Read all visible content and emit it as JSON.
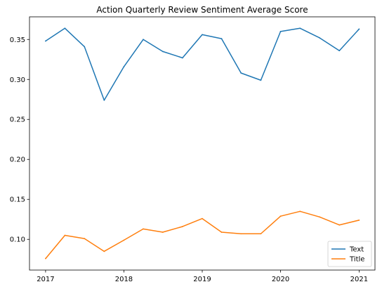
{
  "chart_data": {
    "type": "line",
    "title": "Action Quarterly Review Sentiment Average Score",
    "xlabel": "",
    "ylabel": "",
    "x": [
      "2017-01-01",
      "2017-04-01",
      "2017-07-01",
      "2017-10-01",
      "2018-01-01",
      "2018-04-01",
      "2018-07-01",
      "2018-10-01",
      "2019-01-01",
      "2019-04-01",
      "2019-07-01",
      "2019-10-01",
      "2020-01-01",
      "2020-04-01",
      "2020-07-01",
      "2020-10-01",
      "2021-01-01"
    ],
    "series": [
      {
        "name": "Text",
        "color": "#1f77b4",
        "values": [
          0.348,
          0.364,
          0.341,
          0.274,
          0.316,
          0.35,
          0.335,
          0.327,
          0.356,
          0.351,
          0.308,
          0.299,
          0.36,
          0.364,
          0.352,
          0.336,
          0.363
        ]
      },
      {
        "name": "Title",
        "color": "#ff7f0e",
        "values": [
          0.076,
          0.105,
          0.101,
          0.085,
          0.099,
          0.113,
          0.109,
          0.116,
          0.126,
          0.109,
          0.107,
          0.107,
          0.129,
          0.135,
          0.128,
          0.118,
          0.124
        ]
      }
    ],
    "xticks": [
      {
        "value": "2017-01-01",
        "label": "2017"
      },
      {
        "value": "2018-01-01",
        "label": "2018"
      },
      {
        "value": "2019-01-01",
        "label": "2019"
      },
      {
        "value": "2020-01-01",
        "label": "2020"
      },
      {
        "value": "2021-01-01",
        "label": "2021"
      }
    ],
    "yticks": [
      0.1,
      0.15,
      0.2,
      0.25,
      0.3,
      0.35
    ],
    "xlim": [
      "2016-10-18",
      "2021-03-16"
    ],
    "ylim": [
      0.0616,
      0.3783
    ],
    "grid": false,
    "legend": "lower-right"
  }
}
